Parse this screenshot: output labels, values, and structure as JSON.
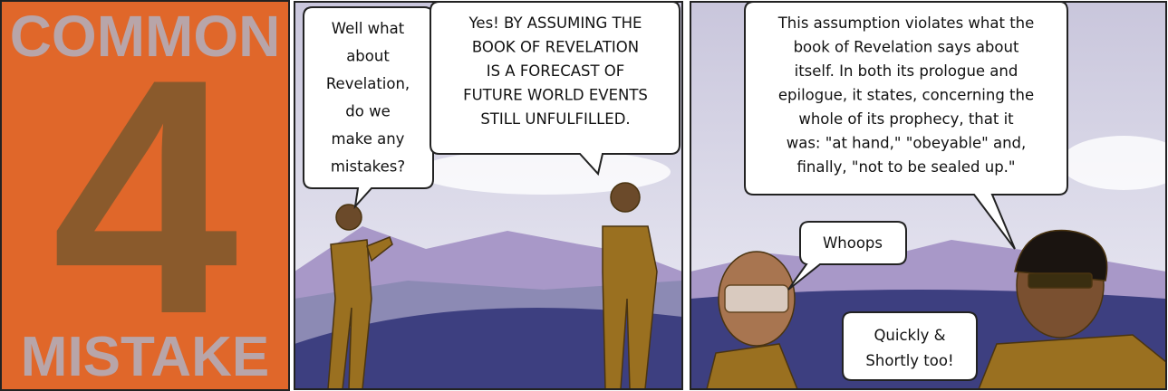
{
  "panel_1": {
    "top": "COMMON",
    "number": "4",
    "bottom": "MISTAKE"
  },
  "panel_2": {
    "bubbles": [
      {
        "lines": [
          "Well what",
          "about",
          "Revelation,",
          "do we",
          "make any",
          "mistakes?"
        ]
      },
      {
        "lines": [
          "Yes! BY ASSUMING THE",
          "BOOK OF REVELATION",
          "IS A FORECAST OF",
          "FUTURE WORLD EVENTS",
          "STILL UNFULFILLED."
        ]
      }
    ]
  },
  "panel_3": {
    "bubbles": [
      {
        "lines": [
          "This assumption violates what the",
          "book of Revelation says about",
          "itself. In both its prologue and",
          "epilogue, it states, concerning the",
          "whole of its prophecy, that it",
          "was: \"at hand,\" \"obeyable\" and,",
          "finally, \"not to be sealed up.\""
        ]
      },
      {
        "lines": [
          "Whoops"
        ]
      },
      {
        "lines": [
          "Quickly &",
          "Shortly too!"
        ]
      }
    ]
  }
}
